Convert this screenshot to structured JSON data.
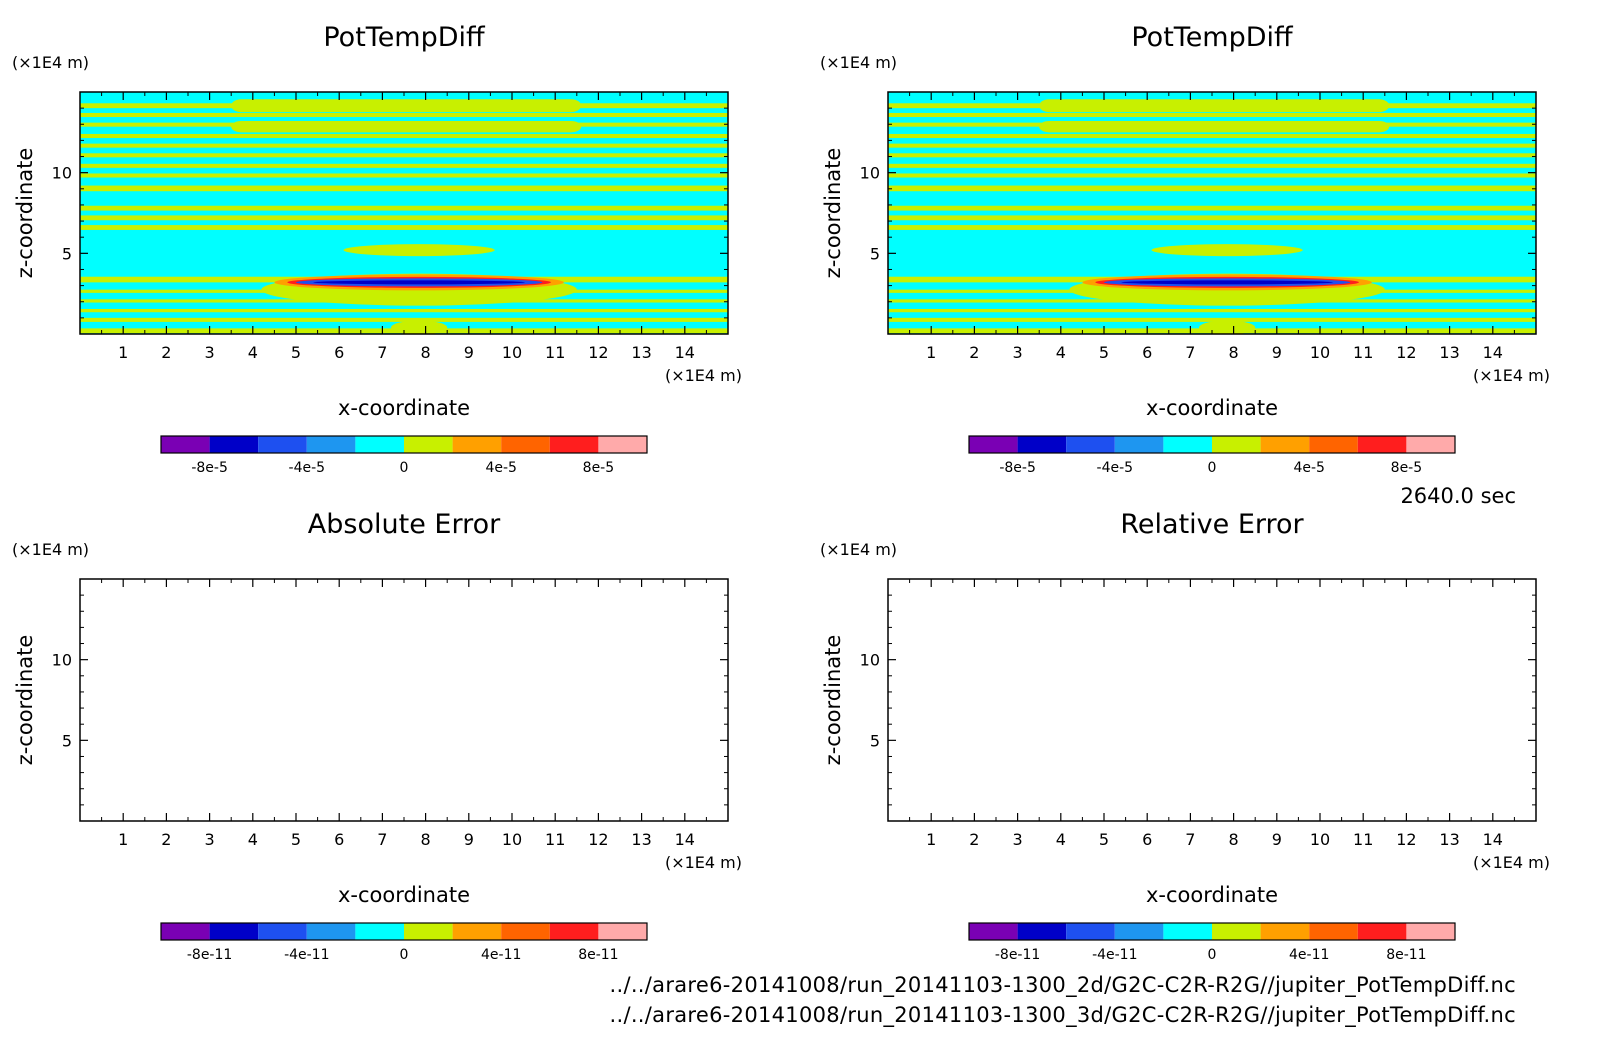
{
  "figure": {
    "time_label": "2640.0 sec",
    "footer_lines": [
      "../../arare6-20141008/run_20141103-1300_2d/G2C-C2R-R2G//jupiter_PotTempDiff.nc",
      "../../arare6-20141008/run_20141103-1300_3d/G2C-C2R-R2G//jupiter_PotTempDiff.nc"
    ]
  },
  "colors": {
    "levels": [
      "#7a00b4",
      "#0000c8",
      "#1e50f0",
      "#1e96f0",
      "#00ffff",
      "#c8f000",
      "#ffa000",
      "#ff6400",
      "#ff1e1e",
      "#ffaaaa"
    ],
    "background_field": "#00ffff",
    "band_field": "#c8f000"
  },
  "chart_data": [
    {
      "id": "top-left",
      "type": "heatmap",
      "title": "PotTempDiff",
      "xlabel": "x-coordinate",
      "ylabel": "z-coordinate",
      "x_unit": "(×1E4 m)",
      "y_unit": "(×1E4 m)",
      "xlim": [
        0,
        15
      ],
      "ylim": [
        0,
        15
      ],
      "x_ticks": [
        1,
        2,
        3,
        4,
        5,
        6,
        7,
        8,
        9,
        10,
        11,
        12,
        13,
        14
      ],
      "y_ticks": [
        5,
        10
      ],
      "filled": true,
      "colorbar": {
        "range": [
          -0.0001,
          0.0001
        ],
        "tick_values": [
          -8e-05,
          -4e-05,
          0,
          4e-05,
          8e-05
        ],
        "tick_labels": [
          "-8e-5",
          "-4e-5",
          "0",
          "4e-5",
          "8e-5"
        ]
      }
    },
    {
      "id": "top-right",
      "type": "heatmap",
      "title": "PotTempDiff",
      "xlabel": "x-coordinate",
      "ylabel": "z-coordinate",
      "x_unit": "(×1E4 m)",
      "y_unit": "(×1E4 m)",
      "xlim": [
        0,
        15
      ],
      "ylim": [
        0,
        15
      ],
      "x_ticks": [
        1,
        2,
        3,
        4,
        5,
        6,
        7,
        8,
        9,
        10,
        11,
        12,
        13,
        14
      ],
      "y_ticks": [
        5,
        10
      ],
      "filled": true,
      "colorbar": {
        "range": [
          -0.0001,
          0.0001
        ],
        "tick_values": [
          -8e-05,
          -4e-05,
          0,
          4e-05,
          8e-05
        ],
        "tick_labels": [
          "-8e-5",
          "-4e-5",
          "0",
          "4e-5",
          "8e-5"
        ]
      }
    },
    {
      "id": "bottom-left",
      "type": "heatmap",
      "title": "Absolute Error",
      "xlabel": "x-coordinate",
      "ylabel": "z-coordinate",
      "x_unit": "(×1E4 m)",
      "y_unit": "(×1E4 m)",
      "xlim": [
        0,
        15
      ],
      "ylim": [
        0,
        15
      ],
      "x_ticks": [
        1,
        2,
        3,
        4,
        5,
        6,
        7,
        8,
        9,
        10,
        11,
        12,
        13,
        14
      ],
      "y_ticks": [
        5,
        10
      ],
      "filled": false,
      "colorbar": {
        "range": [
          -1e-10,
          1e-10
        ],
        "tick_values": [
          -8e-11,
          -4e-11,
          0,
          4e-11,
          8e-11
        ],
        "tick_labels": [
          "-8e-11",
          "-4e-11",
          "0",
          "4e-11",
          "8e-11"
        ]
      }
    },
    {
      "id": "bottom-right",
      "type": "heatmap",
      "title": "Relative Error",
      "xlabel": "x-coordinate",
      "ylabel": "z-coordinate",
      "x_unit": "(×1E4 m)",
      "y_unit": "(×1E4 m)",
      "xlim": [
        0,
        15
      ],
      "ylim": [
        0,
        15
      ],
      "x_ticks": [
        1,
        2,
        3,
        4,
        5,
        6,
        7,
        8,
        9,
        10,
        11,
        12,
        13,
        14
      ],
      "y_ticks": [
        5,
        10
      ],
      "filled": false,
      "colorbar": {
        "range": [
          -1e-10,
          1e-10
        ],
        "tick_values": [
          -8e-11,
          -4e-11,
          0,
          4e-11,
          8e-11
        ],
        "tick_labels": [
          "-8e-11",
          "-4e-11",
          "0",
          "4e-11",
          "8e-11"
        ]
      }
    }
  ]
}
